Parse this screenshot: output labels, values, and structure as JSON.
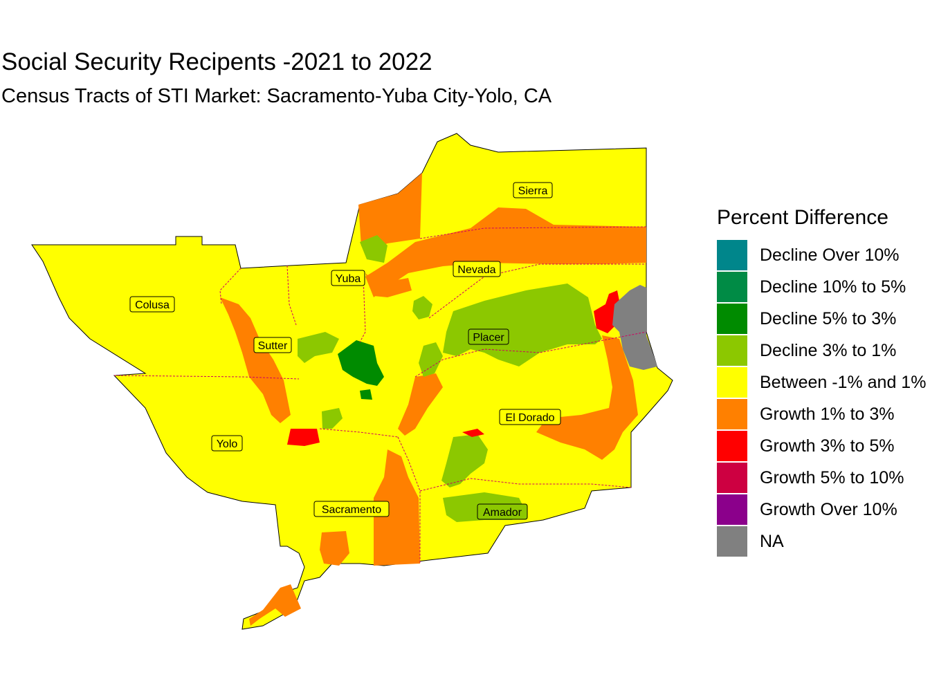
{
  "title": "Social Security Recipents -2021 to 2022",
  "subtitle": "Census Tracts of STI Market: Sacramento-Yuba City-Yolo, CA",
  "legend": {
    "title": "Percent Difference",
    "items": [
      {
        "label": "Decline Over 10%",
        "color": "#00868B"
      },
      {
        "label": "Decline 10% to 5%",
        "color": "#008B45"
      },
      {
        "label": "Decline 5% to 3%",
        "color": "#008B00"
      },
      {
        "label": "Decline 3% to 1%",
        "color": "#8CC800"
      },
      {
        "label": "Between -1% and 1%",
        "color": "#FFFF00"
      },
      {
        "label": "Growth 1% to 3%",
        "color": "#FF8000"
      },
      {
        "label": "Growth 3% to 5%",
        "color": "#FF0000"
      },
      {
        "label": "Growth 5% to 10%",
        "color": "#CD0041"
      },
      {
        "label": "Growth Over 10%",
        "color": "#8B008B"
      },
      {
        "label": "NA",
        "color": "#808080"
      }
    ]
  },
  "counties": [
    {
      "name": "Sierra"
    },
    {
      "name": "Nevada"
    },
    {
      "name": "Yuba"
    },
    {
      "name": "Colusa"
    },
    {
      "name": "Sutter"
    },
    {
      "name": "Placer"
    },
    {
      "name": "El Dorado"
    },
    {
      "name": "Yolo"
    },
    {
      "name": "Sacramento"
    },
    {
      "name": "Amador"
    }
  ]
}
